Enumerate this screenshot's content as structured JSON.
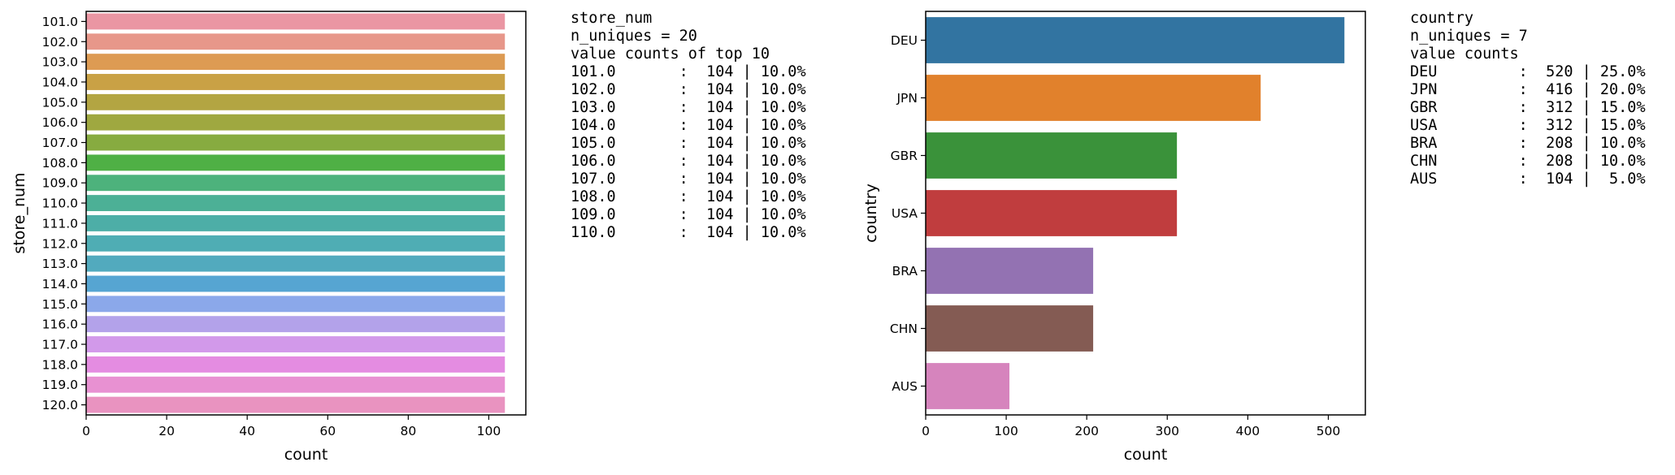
{
  "chart_data": [
    {
      "type": "bar",
      "orientation": "horizontal",
      "categories": [
        "101.0",
        "102.0",
        "103.0",
        "104.0",
        "105.0",
        "106.0",
        "107.0",
        "108.0",
        "109.0",
        "110.0",
        "111.0",
        "112.0",
        "113.0",
        "114.0",
        "115.0",
        "116.0",
        "117.0",
        "118.0",
        "119.0",
        "120.0"
      ],
      "values": [
        104,
        104,
        104,
        104,
        104,
        104,
        104,
        104,
        104,
        104,
        104,
        104,
        104,
        104,
        104,
        104,
        104,
        104,
        104,
        104
      ],
      "colors": [
        "#ea96a3",
        "#e7978a",
        "#dd9b53",
        "#c9a145",
        "#b3a542",
        "#9fa840",
        "#87ab40",
        "#4fb045",
        "#4db27c",
        "#4cb096",
        "#4daea7",
        "#4fadb4",
        "#52aabe",
        "#56a5d2",
        "#8ba8ea",
        "#b3a2ea",
        "#d299ea",
        "#e48ce1",
        "#e891d2",
        "#e993c0"
      ],
      "xlabel": "count",
      "ylabel": "store_num",
      "xlim": [
        0,
        109.2
      ],
      "xticks": [
        0,
        20,
        40,
        60,
        80,
        100
      ],
      "grid": false,
      "summary": {
        "lines": [
          "store_num",
          "n_uniques = 20",
          "value counts of top 10",
          "101.0       :  104 | 10.0%",
          "102.0       :  104 | 10.0%",
          "103.0       :  104 | 10.0%",
          "104.0       :  104 | 10.0%",
          "105.0       :  104 | 10.0%",
          "106.0       :  104 | 10.0%",
          "107.0       :  104 | 10.0%",
          "108.0       :  104 | 10.0%",
          "109.0       :  104 | 10.0%",
          "110.0       :  104 | 10.0%"
        ]
      }
    },
    {
      "type": "bar",
      "orientation": "horizontal",
      "categories": [
        "DEU",
        "JPN",
        "GBR",
        "USA",
        "BRA",
        "CHN",
        "AUS"
      ],
      "values": [
        520,
        416,
        312,
        312,
        208,
        208,
        104
      ],
      "colors": [
        "#3274a1",
        "#e1812c",
        "#3a923a",
        "#c03d3e",
        "#9372b2",
        "#845b53",
        "#d684bd"
      ],
      "xlabel": "count",
      "ylabel": "country",
      "xlim": [
        0,
        546
      ],
      "xticks": [
        0,
        100,
        200,
        300,
        400,
        500
      ],
      "grid": false,
      "summary": {
        "lines": [
          "country",
          "n_uniques = 7",
          "value counts",
          "DEU         :  520 | 25.0%",
          "JPN         :  416 | 20.0%",
          "GBR         :  312 | 15.0%",
          "USA         :  312 | 15.0%",
          "BRA         :  208 | 10.0%",
          "CHN         :  208 | 10.0%",
          "AUS         :  104 |  5.0%"
        ]
      }
    }
  ]
}
